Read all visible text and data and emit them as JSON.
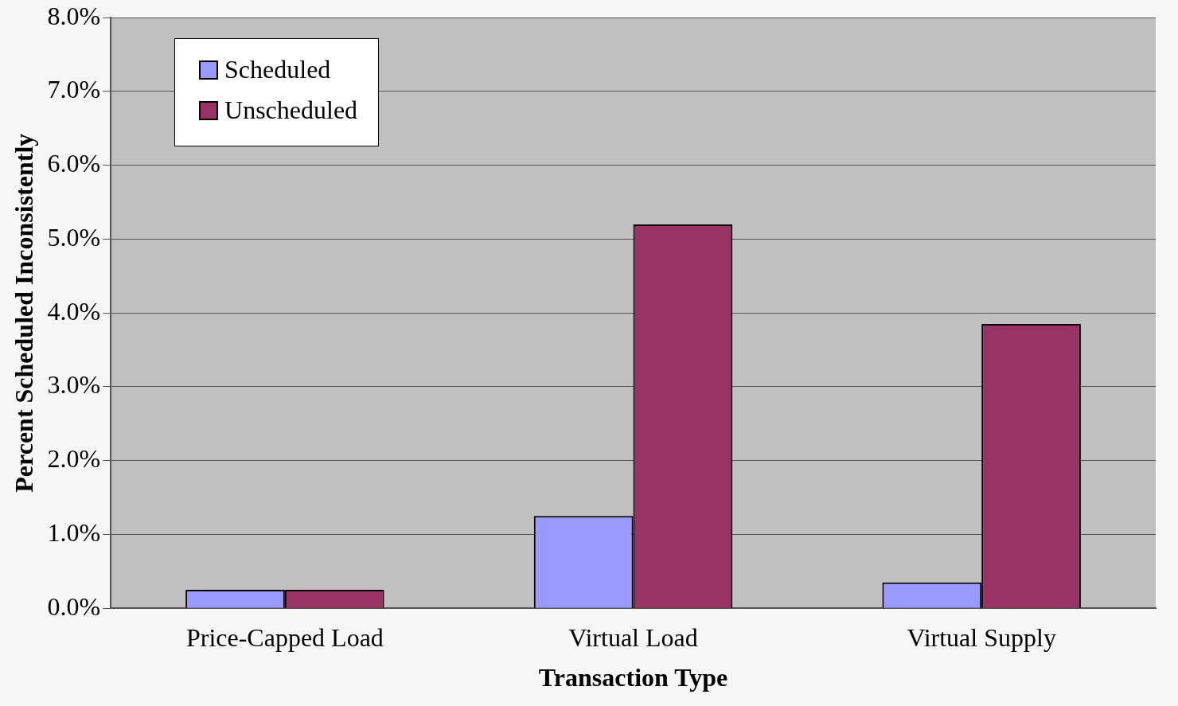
{
  "chart_data": {
    "type": "bar",
    "xlabel": "Transaction Type",
    "ylabel": "Percent Scheduled Inconsistently",
    "categories": [
      "Price-Capped Load",
      "Virtual Load",
      "Virtual Supply"
    ],
    "series": [
      {
        "name": "Scheduled",
        "color": "#9999ff",
        "values": [
          0.25,
          1.25,
          0.35
        ]
      },
      {
        "name": "Unscheduled",
        "color": "#993366",
        "values": [
          0.25,
          5.2,
          3.85
        ]
      }
    ],
    "ylim": [
      0,
      8
    ],
    "yticks": [
      {
        "value": 0,
        "label": "0.0%"
      },
      {
        "value": 1,
        "label": "1.0%"
      },
      {
        "value": 2,
        "label": "2.0%"
      },
      {
        "value": 3,
        "label": "3.0%"
      },
      {
        "value": 4,
        "label": "4.0%"
      },
      {
        "value": 5,
        "label": "5.0%"
      },
      {
        "value": 6,
        "label": "6.0%"
      },
      {
        "value": 7,
        "label": "7.0%"
      },
      {
        "value": 8,
        "label": "8.0%"
      }
    ],
    "grid": "y",
    "legend": "top left"
  }
}
